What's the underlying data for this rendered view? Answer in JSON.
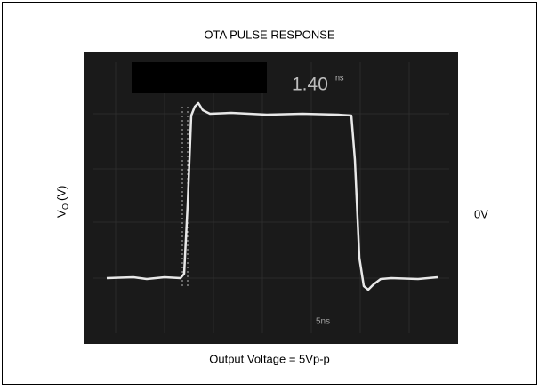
{
  "figure": {
    "title": "OTA PULSE RESPONSE",
    "y_label": {
      "main": "V",
      "sub": "O",
      "unit": "(V)"
    },
    "right_label": "0V",
    "caption": "Output Voltage = 5Vp-p",
    "screen": {
      "readout": {
        "value": "1.40",
        "unit": "ns"
      },
      "timebase": "5ns"
    }
  }
}
